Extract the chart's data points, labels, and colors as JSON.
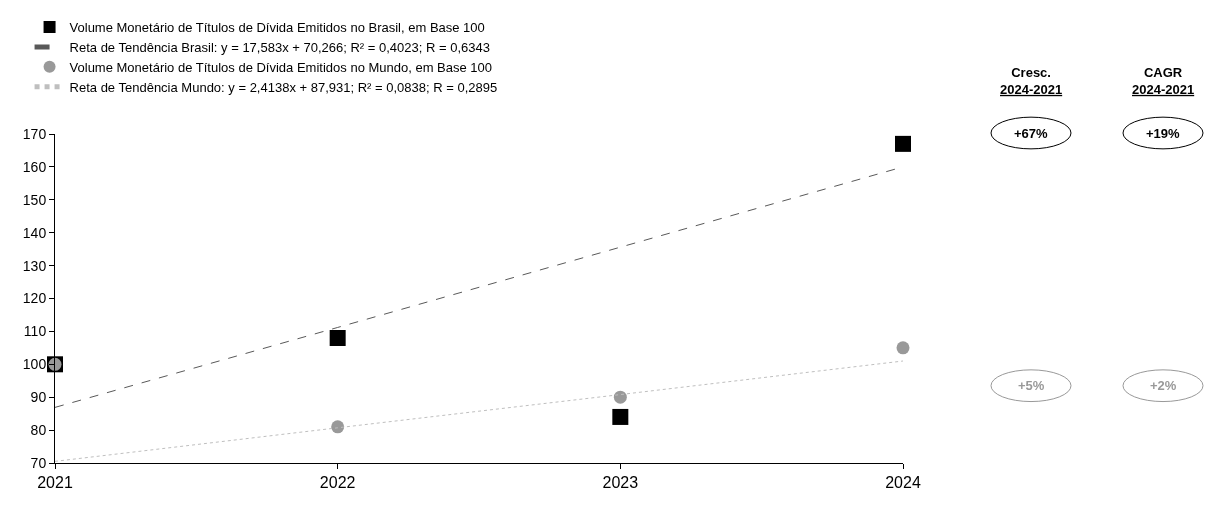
{
  "chart_data": {
    "type": "scatter",
    "x": [
      2021,
      2022,
      2023,
      2024
    ],
    "xlim": [
      2021,
      2024
    ],
    "xticks": [
      2021,
      2022,
      2023,
      2024
    ],
    "ylim": [
      70,
      170
    ],
    "yticks": [
      70,
      80,
      90,
      100,
      110,
      120,
      130,
      140,
      150,
      160,
      170
    ],
    "legend": "top left",
    "series": [
      {
        "name": "Volume Monetário de Títulos de Dívida Emitidos no Brasil, em Base 100",
        "color": "#000000",
        "marker": "square",
        "values": [
          100,
          108,
          84,
          167
        ]
      },
      {
        "name": "Reta de Tendência Brasil: y = 17,583x + 70,266; R² = 0,4023; R = 0,6343",
        "type": "line",
        "color": "#595959",
        "marker": "none",
        "line_style": "dashed",
        "x": [
          2021,
          2022,
          2023,
          2024
        ],
        "values": [
          86.9,
          111.2,
          135.6,
          160
        ]
      },
      {
        "name": "Volume Monetário de Títulos de Dívida Emitidos no Mundo, em Base 100",
        "color": "#999999",
        "marker": "circle",
        "values": [
          100,
          81,
          90,
          105
        ]
      },
      {
        "name": "Reta de Tendência Mundo: y = 2,4138x + 87,931; R² = 0,0838; R = 0,2895",
        "type": "line",
        "color": "#bfbfbf",
        "marker": "none",
        "line_style": "dotted",
        "x": [
          2021,
          2022,
          2023,
          2024
        ],
        "values": [
          70.5,
          80.7,
          90.8,
          101
        ]
      }
    ],
    "annotations": [
      "Cresc.\n2024-2021",
      "CAGR\n2024-2021",
      "+67%",
      "+19%",
      "+5%",
      "+2%"
    ]
  }
}
